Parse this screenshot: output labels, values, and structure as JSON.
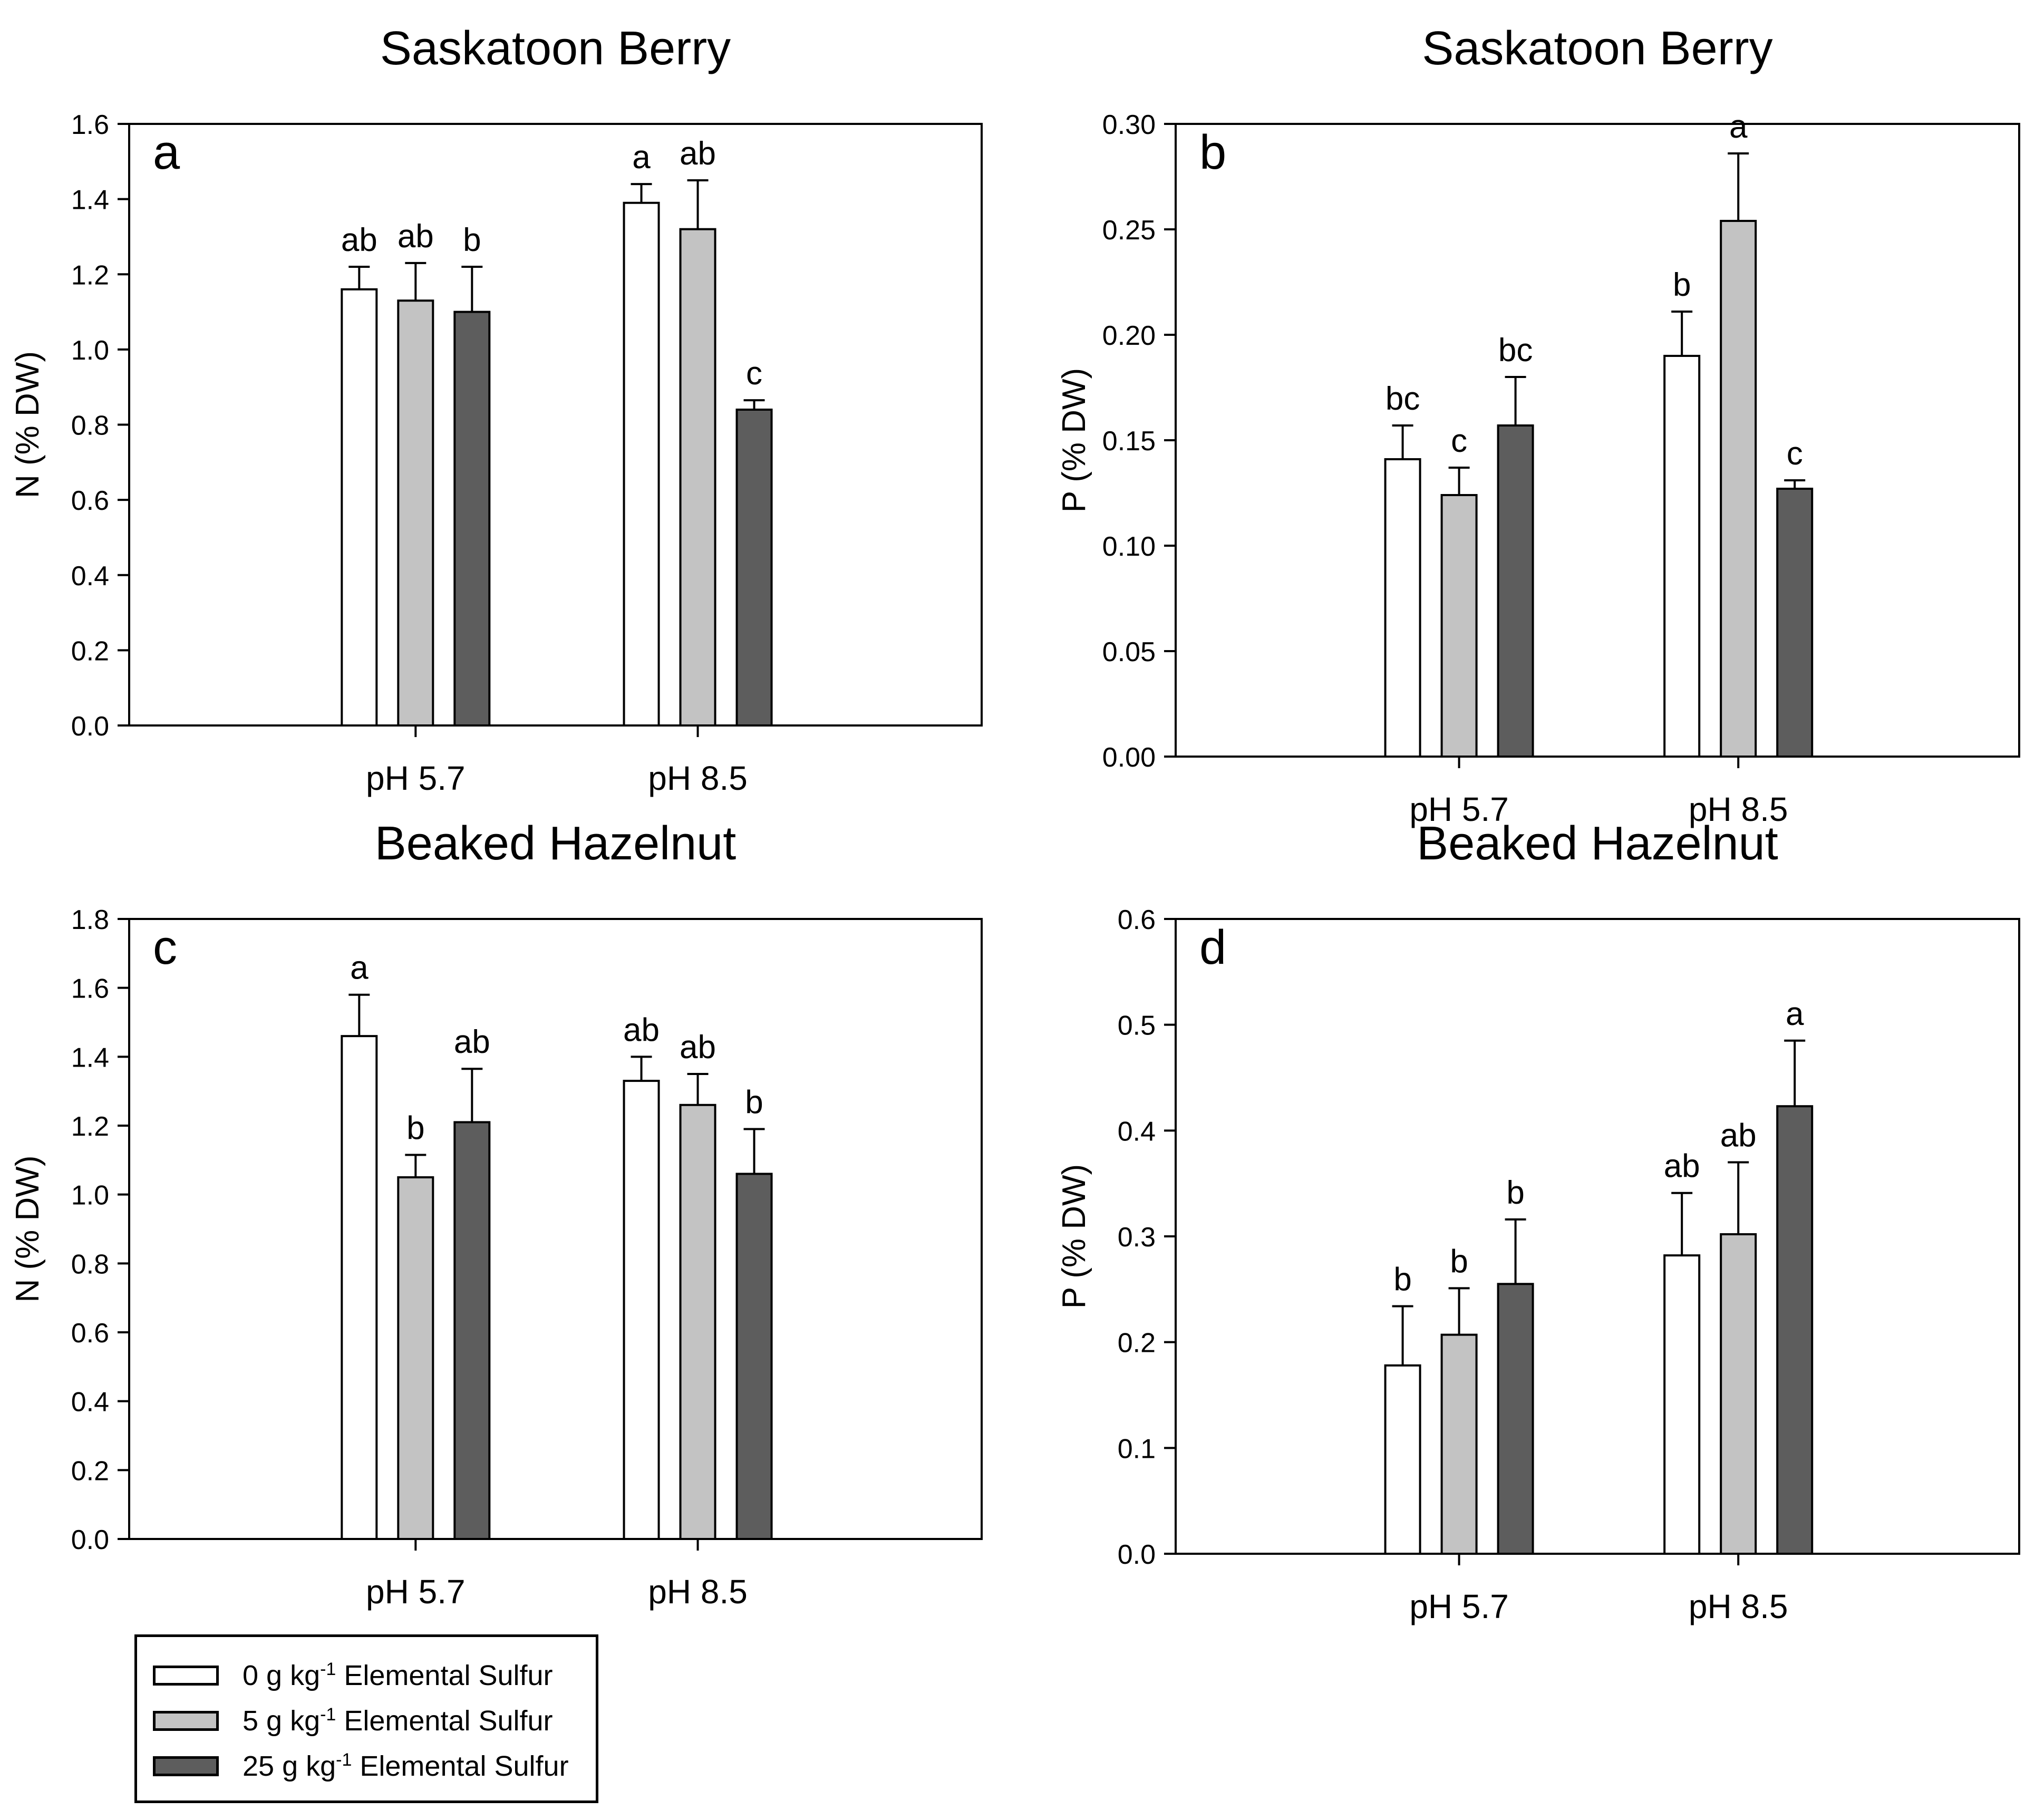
{
  "page": {
    "background_color": "#ffffff",
    "text_color": "#000000"
  },
  "legend": {
    "items": [
      {
        "swatch_color": "#ffffff",
        "label_prefix": "0 g kg",
        "label_superscript": "-1",
        "label_suffix": " Elemental Sulfur"
      },
      {
        "swatch_color": "#c3c3c3",
        "label_prefix": "5 g kg",
        "label_superscript": "-1",
        "label_suffix": " Elemental Sulfur"
      },
      {
        "swatch_color": "#5d5d5d",
        "label_prefix": "25 g kg",
        "label_superscript": "-1",
        "label_suffix": " Elemental Sulfur"
      }
    ]
  },
  "chart_data": [
    {
      "type": "bar",
      "panel_letter": "a",
      "title": "Saskatoon Berry",
      "xlabel": "",
      "ylabel": "N (% DW)",
      "ylim": [
        0,
        1.6
      ],
      "ytick_step": 0.2,
      "ytick_decimals": 1,
      "grid": false,
      "categories": [
        "pH 5.7",
        "pH 8.5"
      ],
      "series": [
        {
          "name": "0 g kg-1 Elemental Sulfur",
          "fill": "#ffffff",
          "values": [
            1.16,
            1.39
          ],
          "errors": [
            0.06,
            0.05
          ],
          "letters": [
            "ab",
            "a"
          ]
        },
        {
          "name": "5 g kg-1 Elemental Sulfur",
          "fill": "#c3c3c3",
          "values": [
            1.13,
            1.32
          ],
          "errors": [
            0.1,
            0.13
          ],
          "letters": [
            "ab",
            "ab"
          ]
        },
        {
          "name": "25 g kg-1 Elemental Sulfur",
          "fill": "#5d5d5d",
          "values": [
            1.1,
            0.84
          ],
          "errors": [
            0.12,
            0.025
          ],
          "letters": [
            "b",
            "c"
          ]
        }
      ]
    },
    {
      "type": "bar",
      "panel_letter": "b",
      "title": "Saskatoon Berry",
      "xlabel": "",
      "ylabel": "P (% DW)",
      "ylim": [
        0,
        0.3
      ],
      "ytick_step": 0.05,
      "ytick_decimals": 2,
      "grid": false,
      "categories": [
        "pH 5.7",
        "pH 8.5"
      ],
      "series": [
        {
          "name": "0 g kg-1 Elemental Sulfur",
          "fill": "#ffffff",
          "values": [
            0.141,
            0.19
          ],
          "errors": [
            0.016,
            0.021
          ],
          "letters": [
            "bc",
            "b"
          ]
        },
        {
          "name": "5 g kg-1 Elemental Sulfur",
          "fill": "#c3c3c3",
          "values": [
            0.124,
            0.254
          ],
          "errors": [
            0.013,
            0.032
          ],
          "letters": [
            "c",
            "a"
          ]
        },
        {
          "name": "25 g kg-1 Elemental Sulfur",
          "fill": "#5d5d5d",
          "values": [
            0.157,
            0.127
          ],
          "errors": [
            0.023,
            0.004
          ],
          "letters": [
            "bc",
            "c"
          ]
        }
      ]
    },
    {
      "type": "bar",
      "panel_letter": "c",
      "title": "Beaked Hazelnut",
      "xlabel": "",
      "ylabel": "N (% DW)",
      "ylim": [
        0,
        1.8
      ],
      "ytick_step": 0.2,
      "ytick_decimals": 1,
      "grid": false,
      "categories": [
        "pH 5.7",
        "pH 8.5"
      ],
      "series": [
        {
          "name": "0 g kg-1 Elemental Sulfur",
          "fill": "#ffffff",
          "values": [
            1.46,
            1.33
          ],
          "errors": [
            0.12,
            0.07
          ],
          "letters": [
            "a",
            "ab"
          ]
        },
        {
          "name": "5 g kg-1 Elemental Sulfur",
          "fill": "#c3c3c3",
          "values": [
            1.05,
            1.26
          ],
          "errors": [
            0.065,
            0.09
          ],
          "letters": [
            "b",
            "ab"
          ]
        },
        {
          "name": "25 g kg-1 Elemental Sulfur",
          "fill": "#5d5d5d",
          "values": [
            1.21,
            1.06
          ],
          "errors": [
            0.155,
            0.13
          ],
          "letters": [
            "ab",
            "b"
          ]
        }
      ]
    },
    {
      "type": "bar",
      "panel_letter": "d",
      "title": "Beaked Hazelnut",
      "xlabel": "",
      "ylabel": "P (% DW)",
      "ylim": [
        0,
        0.6
      ],
      "ytick_step": 0.1,
      "ytick_decimals": 1,
      "grid": false,
      "categories": [
        "pH 5.7",
        "pH 8.5"
      ],
      "series": [
        {
          "name": "0 g kg-1 Elemental Sulfur",
          "fill": "#ffffff",
          "values": [
            0.178,
            0.282
          ],
          "errors": [
            0.056,
            0.059
          ],
          "letters": [
            "b",
            "ab"
          ]
        },
        {
          "name": "5 g kg-1 Elemental Sulfur",
          "fill": "#c3c3c3",
          "values": [
            0.207,
            0.302
          ],
          "errors": [
            0.044,
            0.068
          ],
          "letters": [
            "b",
            "ab"
          ]
        },
        {
          "name": "25 g kg-1 Elemental Sulfur",
          "fill": "#5d5d5d",
          "values": [
            0.255,
            0.423
          ],
          "errors": [
            0.061,
            0.062
          ],
          "letters": [
            "b",
            "a"
          ]
        }
      ]
    }
  ]
}
